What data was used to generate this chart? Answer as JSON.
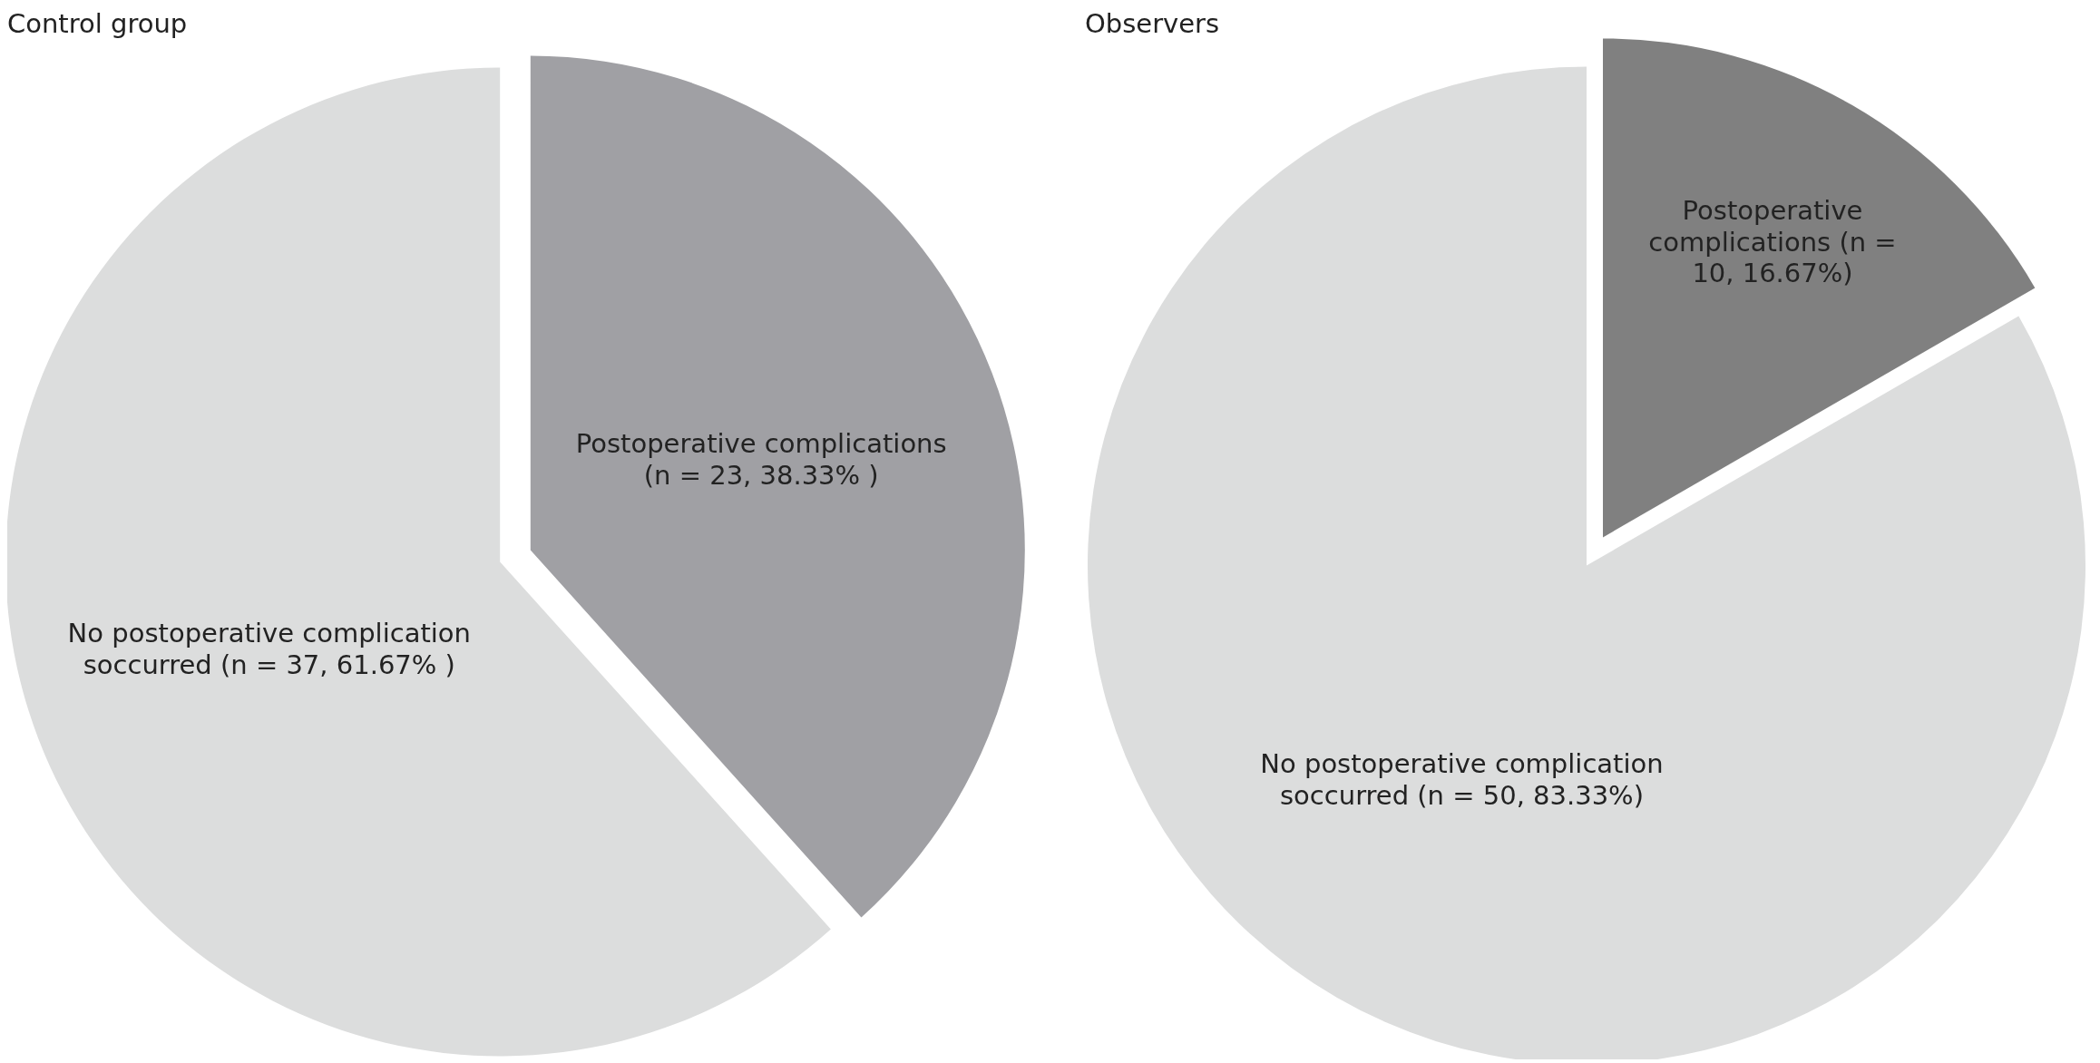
{
  "chart_data": [
    {
      "type": "pie",
      "title": "Control group",
      "categories": [
        "Postoperative complications",
        "No postoperative complication soccurred"
      ],
      "values": [
        23,
        37
      ],
      "colors": [
        "#a0a0a4",
        "#dcdddd"
      ],
      "value_labels": [
        "(n = 23, 38.33% )",
        "(n = 37, 61.67% )"
      ]
    },
    {
      "type": "pie",
      "title": "Observers",
      "categories": [
        "Postoperative complications",
        "No postoperative complication soccurred"
      ],
      "values": [
        10,
        50
      ],
      "colors": [
        "#808080",
        "#dcdddd"
      ],
      "value_labels": [
        "(n = 10, 16.67%)",
        "(n = 50, 83.33%)"
      ]
    }
  ]
}
